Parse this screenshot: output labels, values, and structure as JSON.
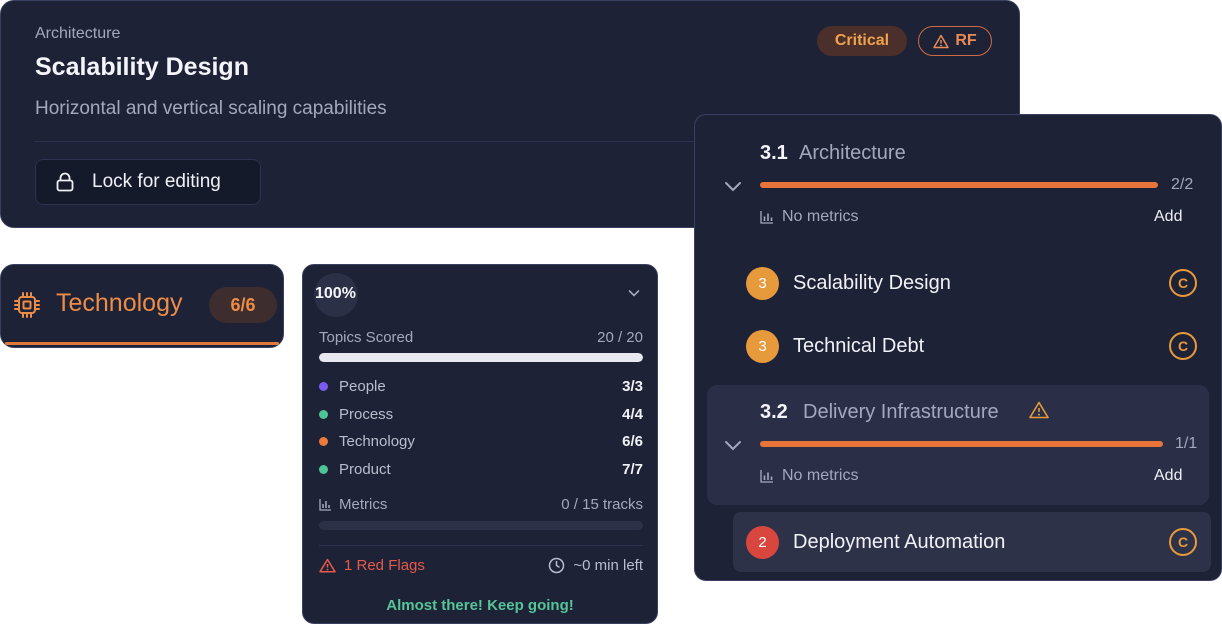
{
  "topic": {
    "eyebrow": "Architecture",
    "title": "Scalability Design",
    "subtitle": "Horizontal and vertical scaling capabilities",
    "lock_label": "Lock for editing",
    "badge_critical": "Critical",
    "badge_rf": "RF"
  },
  "technology": {
    "label": "Technology",
    "count": "6/6",
    "icon": "chip-icon",
    "color": "#ec8c46"
  },
  "progress": {
    "percent": "100%",
    "topics_scored_label": "Topics Scored",
    "topics_scored_value": "20 / 20",
    "topics_scored_fraction": 1.0,
    "categories": [
      {
        "label": "People",
        "value": "3/3",
        "color": "#7b5cf0"
      },
      {
        "label": "Process",
        "value": "4/4",
        "color": "#4cc495"
      },
      {
        "label": "Technology",
        "value": "6/6",
        "color": "#ec7a3a"
      },
      {
        "label": "Product",
        "value": "7/7",
        "color": "#4cc495"
      }
    ],
    "metrics_label": "Metrics",
    "metrics_value": "0 / 15 tracks",
    "metrics_fraction": 0.0,
    "red_flags": "1 Red Flags",
    "time_left": "~0 min left",
    "encouragement": "Almost there! Keep going!"
  },
  "outline": {
    "sections": [
      {
        "number": "3.1",
        "name": "Architecture",
        "count": "2/2",
        "fraction": 1.0,
        "metrics": "No metrics",
        "add": "Add"
      },
      {
        "number": "3.2",
        "name": "Delivery Infrastructure",
        "count": "1/1",
        "fraction": 1.0,
        "metrics": "No metrics",
        "add": "Add"
      }
    ],
    "topics": [
      {
        "score": "3",
        "name": "Scalability Design",
        "badge": "C",
        "color": "#e79a3c"
      },
      {
        "score": "3",
        "name": "Technical Debt",
        "badge": "C",
        "color": "#e79a3c"
      },
      {
        "score": "2",
        "name": "Deployment Automation",
        "badge": "C",
        "color": "#d9463e"
      }
    ]
  }
}
